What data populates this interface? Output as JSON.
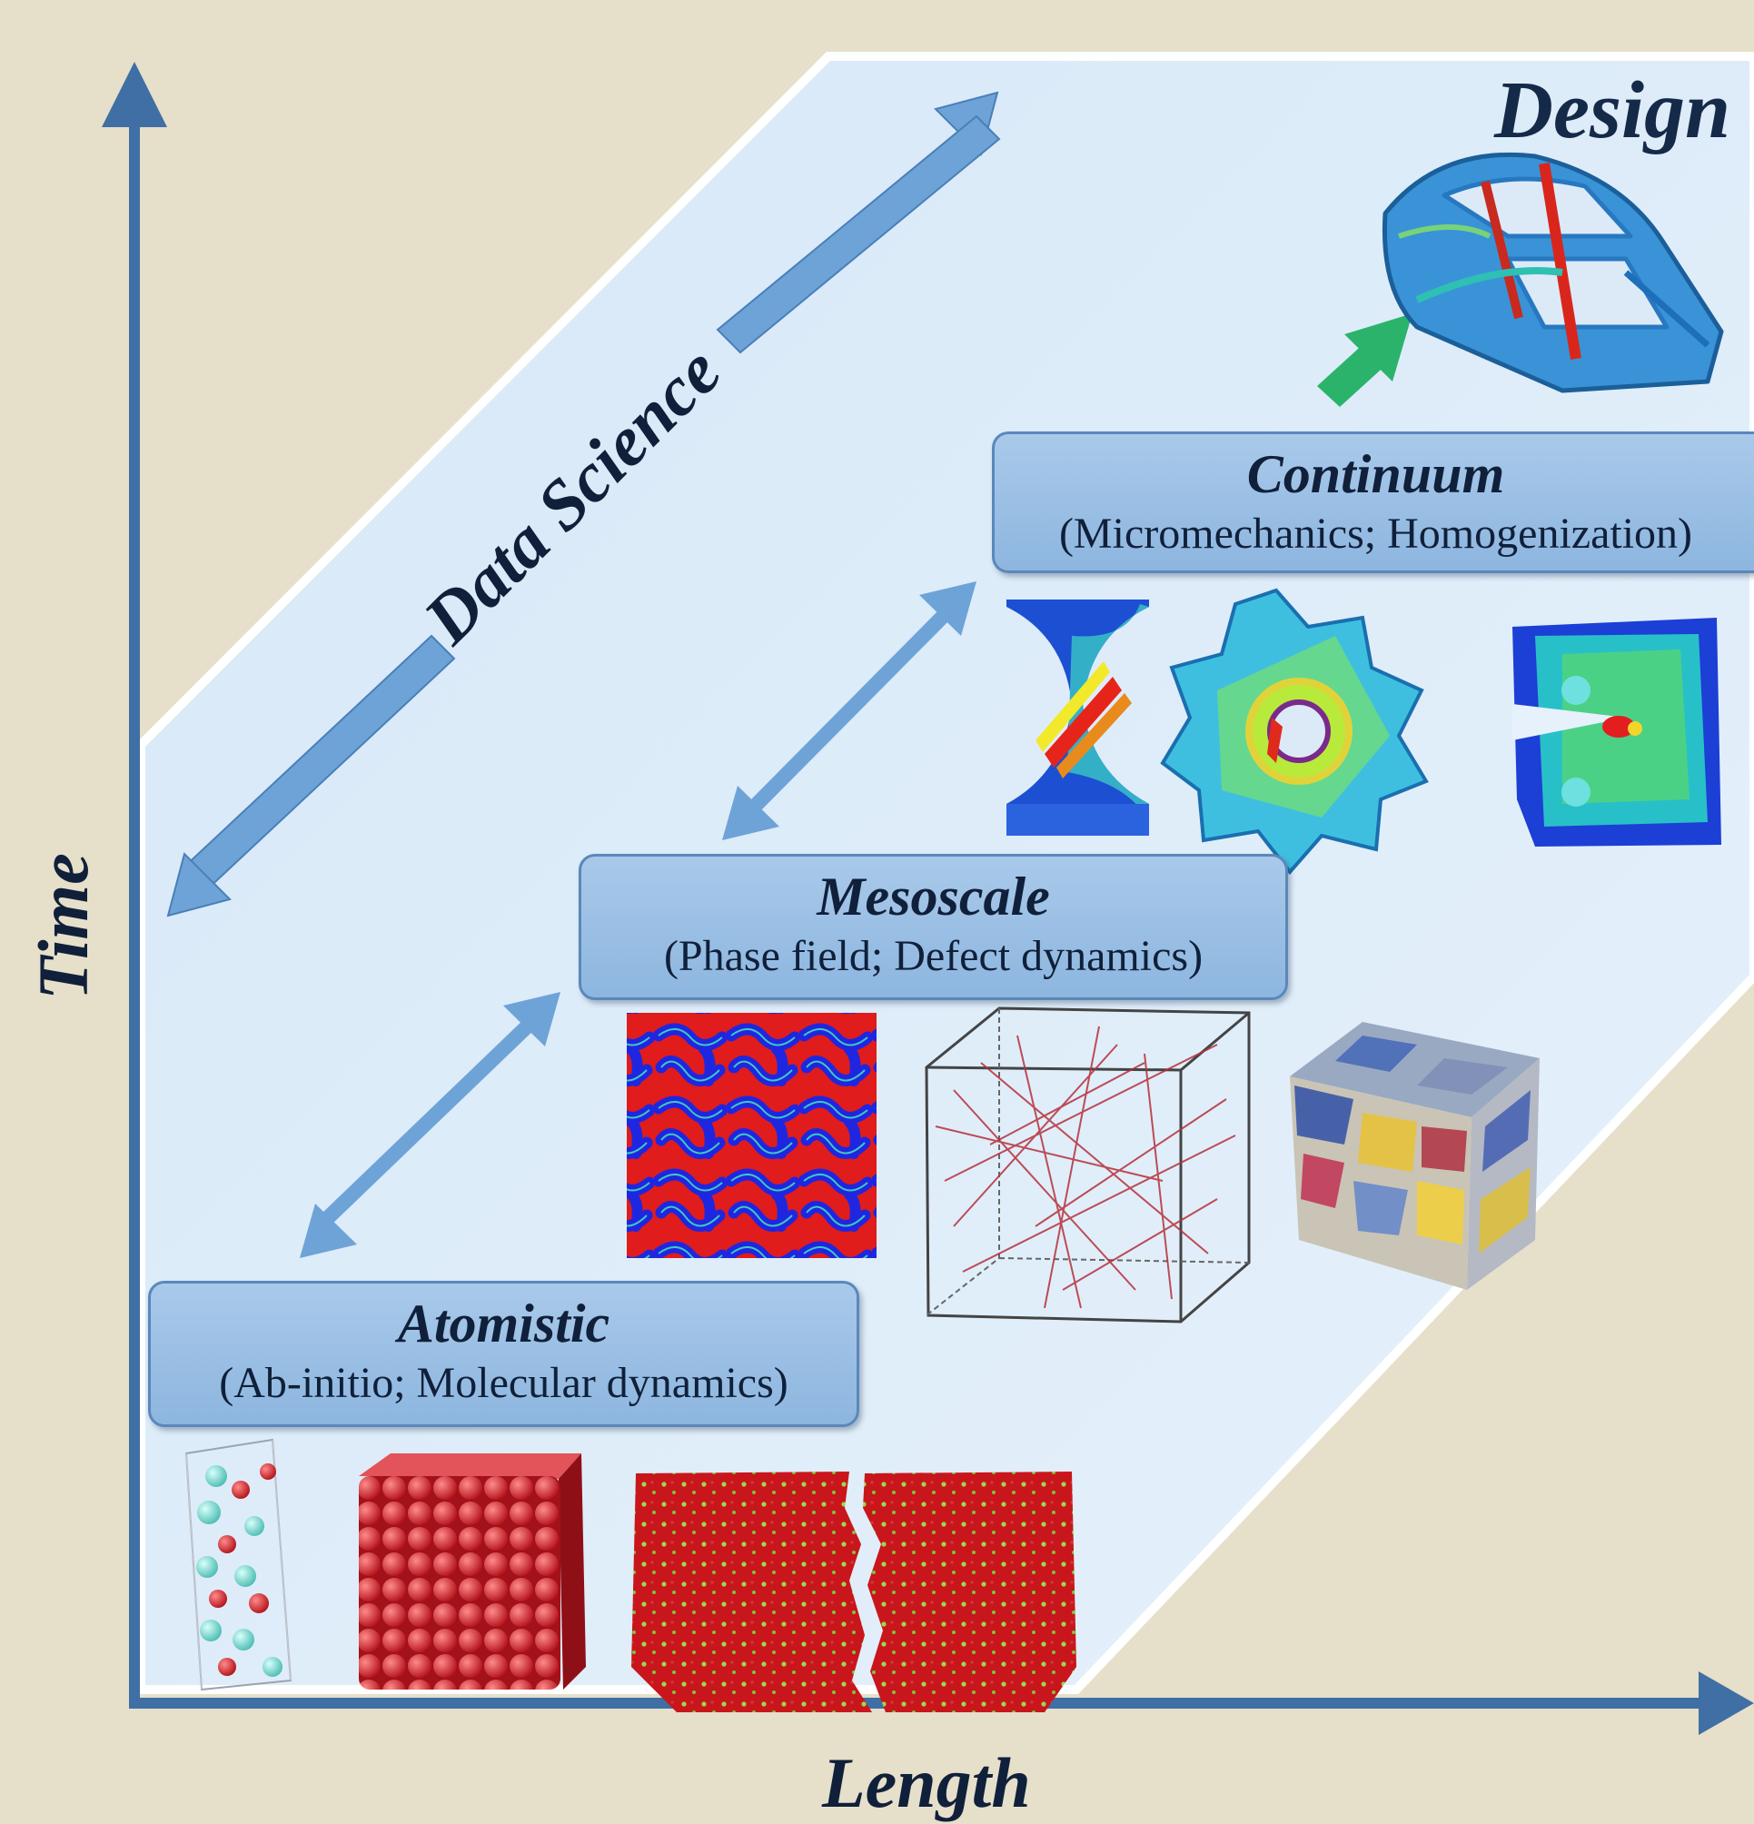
{
  "axes": {
    "x_label": "Length",
    "y_label": "Time"
  },
  "diagonal_label": "Data Science",
  "design_label": "Design",
  "levels": [
    {
      "title": "Atomistic",
      "subtitle": "(Ab-initio; Molecular dynamics)"
    },
    {
      "title": "Mesoscale",
      "subtitle": "(Phase field; Defect dynamics)"
    },
    {
      "title": "Continuum",
      "subtitle": "(Micromechanics; Homogenization)"
    }
  ],
  "colors": {
    "background": "#e6dfca",
    "panel": "#dceaf7",
    "axis": "#3f6fa4",
    "arrow": "#6ea3d8",
    "box": "#9dc0e6",
    "design_arrow": "#2bb36c"
  }
}
